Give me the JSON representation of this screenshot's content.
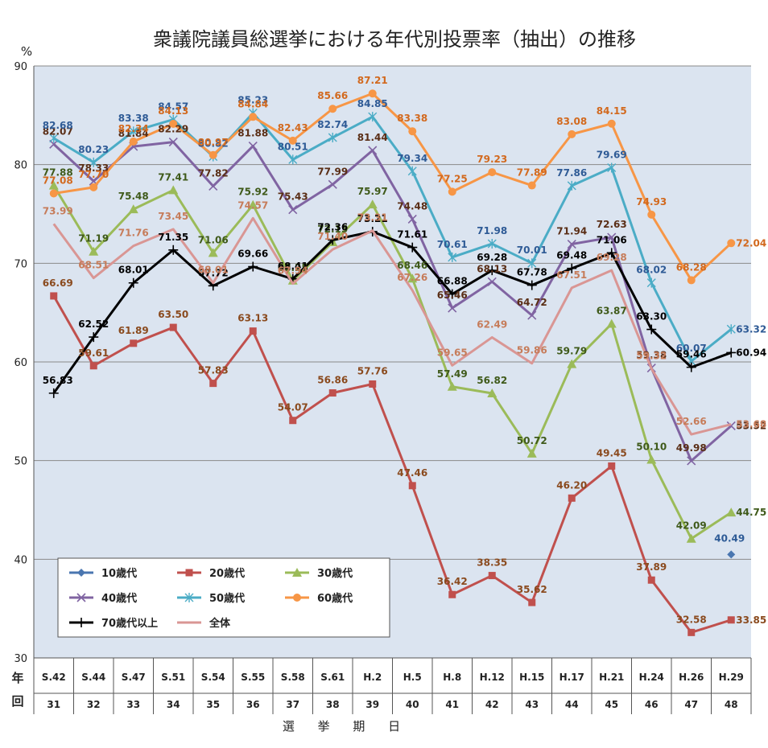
{
  "chart_data": {
    "type": "line",
    "title": "衆議院議員総選挙における年代別投票率（抽出）の推移",
    "ylabel": "%",
    "xlabel": "選 挙 期 日",
    "row_label_1": "年",
    "row_label_2": "回",
    "ylim": [
      30,
      90
    ],
    "yticks": [
      "30",
      "40",
      "50",
      "60",
      "70",
      "80",
      "90"
    ],
    "categories": [
      "S.42",
      "S.44",
      "S.47",
      "S.51",
      "S.54",
      "S.55",
      "S.58",
      "S.61",
      "H.2",
      "H.5",
      "H.8",
      "H.12",
      "H.15",
      "H.17",
      "H.21",
      "H.24",
      "H.26",
      "H.29"
    ],
    "sessions": [
      "31",
      "32",
      "33",
      "34",
      "35",
      "36",
      "37",
      "38",
      "39",
      "40",
      "41",
      "42",
      "43",
      "44",
      "45",
      "46",
      "47",
      "48"
    ],
    "grid": true,
    "legend_position": "bottom-left",
    "series": [
      {
        "name": "10歳代",
        "color": "#4a76b0",
        "marker": "diamond",
        "values": [
          null,
          null,
          null,
          null,
          null,
          null,
          null,
          null,
          null,
          null,
          null,
          null,
          null,
          null,
          null,
          null,
          null,
          40.49
        ],
        "labels": [
          null,
          null,
          null,
          null,
          null,
          null,
          null,
          null,
          null,
          null,
          null,
          null,
          null,
          null,
          null,
          null,
          null,
          "40.49"
        ]
      },
      {
        "name": "20歳代",
        "color": "#c0504d",
        "marker": "square",
        "values": [
          66.69,
          59.61,
          61.89,
          63.5,
          57.83,
          63.13,
          54.07,
          56.86,
          57.76,
          47.46,
          36.42,
          38.35,
          35.62,
          46.2,
          49.45,
          37.89,
          32.58,
          33.85
        ],
        "labels": [
          "66.69",
          "59.61",
          "61.89",
          "63.50",
          "57.83",
          "63.13",
          "54.07",
          "56.86",
          "57.76",
          "47.46",
          "36.42",
          "38.35",
          "35.62",
          "46.20",
          "49.45",
          "37.89",
          "32.58",
          "33.85"
        ]
      },
      {
        "name": "30歳代",
        "color": "#9bbb59",
        "marker": "triangle",
        "values": [
          77.88,
          71.19,
          75.48,
          77.41,
          71.06,
          75.92,
          68.25,
          72.15,
          75.97,
          68.46,
          57.49,
          56.82,
          50.72,
          59.79,
          63.87,
          50.1,
          42.09,
          44.75
        ],
        "labels": [
          "77.88",
          "71.19",
          "75.48",
          "77.41",
          "71.06",
          "75.92",
          "68.25",
          "72.15",
          "75.97",
          "68.46",
          "57.49",
          "56.82",
          "50.72",
          "59.79",
          "63.87",
          "50.10",
          "42.09",
          "44.75"
        ]
      },
      {
        "name": "40歳代",
        "color": "#8064a2",
        "marker": "x",
        "values": [
          82.07,
          78.33,
          81.84,
          82.29,
          77.82,
          81.88,
          75.43,
          77.99,
          81.44,
          74.48,
          65.46,
          68.13,
          64.72,
          71.94,
          72.63,
          59.38,
          49.98,
          53.52
        ],
        "labels": [
          "82.07",
          "78.33",
          "81.84",
          "82.29",
          "77.82",
          "81.88",
          "75.43",
          "77.99",
          "81.44",
          "74.48",
          "65.46",
          "68.13",
          "64.72",
          "71.94",
          "72.63",
          "59.38",
          "49.98",
          "53.52"
        ]
      },
      {
        "name": "50歳代",
        "color": "#4bacc6",
        "marker": "star",
        "values": [
          82.68,
          80.23,
          83.38,
          84.57,
          80.82,
          85.23,
          80.51,
          82.74,
          84.85,
          79.34,
          70.61,
          71.98,
          70.01,
          77.86,
          79.69,
          68.02,
          60.07,
          63.32
        ],
        "labels": [
          "82.68",
          "80.23",
          "83.38",
          "84.57",
          "80.82",
          "85.23",
          "80.51",
          "82.74",
          "84.85",
          "79.34",
          "70.61",
          "71.98",
          "70.01",
          "77.86",
          "79.69",
          "68.02",
          "60.07",
          "63.32"
        ]
      },
      {
        "name": "60歳代",
        "color": "#f79646",
        "marker": "circle",
        "values": [
          77.08,
          77.7,
          82.34,
          84.13,
          80.97,
          84.84,
          82.43,
          85.66,
          87.21,
          83.38,
          77.25,
          79.23,
          77.89,
          83.08,
          84.15,
          74.93,
          68.28,
          72.04
        ],
        "labels": [
          "77.08",
          "77.70",
          "82.34",
          "84.13",
          "80.97",
          "84.84",
          "82.43",
          "85.66",
          "87.21",
          "83.38",
          "77.25",
          "79.23",
          "77.89",
          "83.08",
          "84.15",
          "74.93",
          "68.28",
          "72.04"
        ]
      },
      {
        "name": "70歳代以上",
        "color": "#000000",
        "marker": "plus",
        "values": [
          56.83,
          62.52,
          68.01,
          71.35,
          67.72,
          69.66,
          68.41,
          72.36,
          73.21,
          71.61,
          66.88,
          69.28,
          67.78,
          69.48,
          71.06,
          63.3,
          59.46,
          60.94
        ],
        "labels": [
          "56.83",
          "62.52",
          "68.01",
          "71.35",
          "67.72",
          "69.66",
          "68.41",
          "72.36",
          "73.21",
          "71.61",
          "66.88",
          "69.28",
          "67.78",
          "69.48",
          "71.06",
          "63.30",
          "59.46",
          "60.94"
        ]
      },
      {
        "name": "全体",
        "color": "#d99694",
        "marker": "none",
        "values": [
          73.99,
          68.51,
          71.76,
          73.45,
          68.01,
          74.57,
          67.94,
          71.4,
          73.31,
          67.26,
          59.65,
          62.49,
          59.86,
          67.51,
          69.28,
          59.32,
          52.66,
          53.68
        ],
        "labels": [
          "73.99",
          "68.51",
          "71.76",
          "73.45",
          "68.01",
          "74.57",
          "67.94",
          "71.40",
          "73.31",
          "67.26",
          "59.65",
          "62.49",
          "59.86",
          "67.51",
          "69.28",
          "59.32",
          "52.66",
          "53.68"
        ]
      }
    ]
  }
}
